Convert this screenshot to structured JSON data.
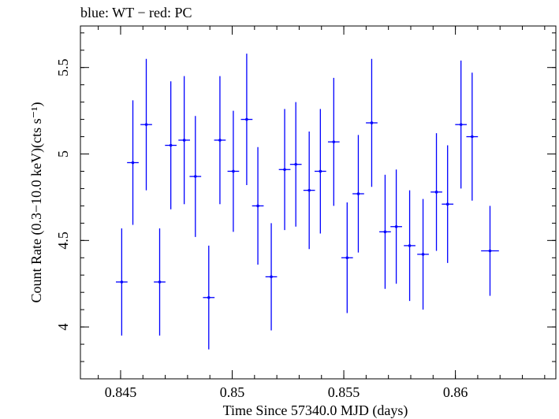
{
  "chart_data": {
    "type": "scatter",
    "title": "blue: WT − red: PC",
    "xlabel": "Time Since 57340.0 MJD (days)",
    "ylabel": "Count Rate (0.3−10.0 keV)(cts s⁻¹)",
    "xlim": [
      0.8432,
      0.8645
    ],
    "ylim": [
      3.7,
      5.74
    ],
    "x_ticks": [
      0.845,
      0.85,
      0.855,
      0.86
    ],
    "x_tick_labels": [
      "0.845",
      "0.85",
      "0.855",
      "0.86"
    ],
    "y_ticks": [
      4,
      4.5,
      5,
      5.5
    ],
    "y_tick_labels": [
      "4",
      "4.5",
      "5",
      "5.5"
    ],
    "x_minor_step": 0.001,
    "y_minor_step": 0.1,
    "grid": false,
    "series": [
      {
        "color": "#0000ff",
        "points": [
          {
            "x": 0.84505,
            "y": 4.26,
            "xerr": 0.00026,
            "yerr": 0.31
          },
          {
            "x": 0.84555,
            "y": 4.95,
            "xerr": 0.00026,
            "yerr": 0.36
          },
          {
            "x": 0.84615,
            "y": 5.17,
            "xerr": 0.00026,
            "yerr": 0.38
          },
          {
            "x": 0.84675,
            "y": 4.26,
            "xerr": 0.00026,
            "yerr": 0.31
          },
          {
            "x": 0.84725,
            "y": 5.05,
            "xerr": 0.00026,
            "yerr": 0.37
          },
          {
            "x": 0.84785,
            "y": 5.08,
            "xerr": 0.00026,
            "yerr": 0.37
          },
          {
            "x": 0.84835,
            "y": 4.87,
            "xerr": 0.00026,
            "yerr": 0.35
          },
          {
            "x": 0.84895,
            "y": 4.17,
            "xerr": 0.00026,
            "yerr": 0.3
          },
          {
            "x": 0.84945,
            "y": 5.08,
            "xerr": 0.00026,
            "yerr": 0.37
          },
          {
            "x": 0.85005,
            "y": 4.9,
            "xerr": 0.00026,
            "yerr": 0.35
          },
          {
            "x": 0.85065,
            "y": 5.2,
            "xerr": 0.00026,
            "yerr": 0.38
          },
          {
            "x": 0.85115,
            "y": 4.7,
            "xerr": 0.00026,
            "yerr": 0.34
          },
          {
            "x": 0.85175,
            "y": 4.29,
            "xerr": 0.00026,
            "yerr": 0.31
          },
          {
            "x": 0.85235,
            "y": 4.91,
            "xerr": 0.00026,
            "yerr": 0.35
          },
          {
            "x": 0.85285,
            "y": 4.94,
            "xerr": 0.00026,
            "yerr": 0.36
          },
          {
            "x": 0.85345,
            "y": 4.79,
            "xerr": 0.00026,
            "yerr": 0.34
          },
          {
            "x": 0.85395,
            "y": 4.9,
            "xerr": 0.00026,
            "yerr": 0.36
          },
          {
            "x": 0.85455,
            "y": 5.07,
            "xerr": 0.00026,
            "yerr": 0.37
          },
          {
            "x": 0.85515,
            "y": 4.4,
            "xerr": 0.00026,
            "yerr": 0.32
          },
          {
            "x": 0.85565,
            "y": 4.77,
            "xerr": 0.00026,
            "yerr": 0.34
          },
          {
            "x": 0.85625,
            "y": 5.18,
            "xerr": 0.00026,
            "yerr": 0.37
          },
          {
            "x": 0.85685,
            "y": 4.55,
            "xerr": 0.00026,
            "yerr": 0.33
          },
          {
            "x": 0.85735,
            "y": 4.58,
            "xerr": 0.00026,
            "yerr": 0.33
          },
          {
            "x": 0.85795,
            "y": 4.47,
            "xerr": 0.00026,
            "yerr": 0.32
          },
          {
            "x": 0.85855,
            "y": 4.42,
            "xerr": 0.00026,
            "yerr": 0.32
          },
          {
            "x": 0.85915,
            "y": 4.78,
            "xerr": 0.00026,
            "yerr": 0.34
          },
          {
            "x": 0.85965,
            "y": 4.71,
            "xerr": 0.00026,
            "yerr": 0.34
          },
          {
            "x": 0.86025,
            "y": 5.17,
            "xerr": 0.00026,
            "yerr": 0.37
          },
          {
            "x": 0.86075,
            "y": 5.1,
            "xerr": 0.00026,
            "yerr": 0.37
          },
          {
            "x": 0.86155,
            "y": 4.44,
            "xerr": 0.0004,
            "yerr": 0.26
          }
        ]
      }
    ]
  }
}
